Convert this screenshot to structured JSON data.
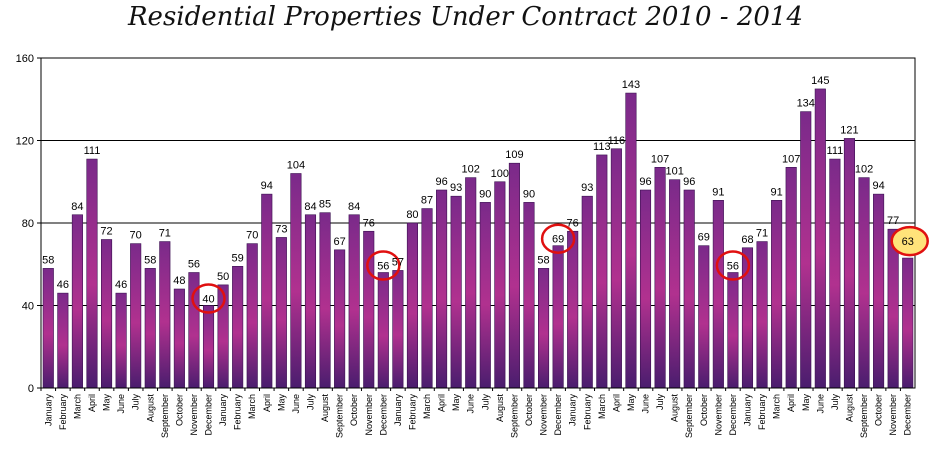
{
  "chart_data": {
    "type": "bar",
    "title": "Residential Properties Under Contract 2010 - 2014",
    "xlabel": "",
    "ylabel": "",
    "ylim": [
      0,
      160
    ],
    "yticks": [
      0,
      40,
      80,
      120,
      160
    ],
    "grid": true,
    "legend": "none",
    "colors": {
      "bar_top": "#7a2a8a",
      "bar_mid": "#b1318f",
      "bar_bottom": "#4a1d6e",
      "circle": "#e01010",
      "highlight_fill": "#ffe37a"
    },
    "categories": [
      "January",
      "February",
      "March",
      "April",
      "May",
      "June",
      "July",
      "August",
      "September",
      "October",
      "November",
      "December",
      "January",
      "February",
      "March",
      "April",
      "May",
      "June",
      "July",
      "August",
      "September",
      "October",
      "November",
      "December",
      "January",
      "February",
      "March",
      "April",
      "May",
      "June",
      "July",
      "August",
      "September",
      "October",
      "November",
      "December",
      "January",
      "February",
      "March",
      "April",
      "May",
      "June",
      "July",
      "August",
      "September",
      "October",
      "November",
      "December",
      "January",
      "February",
      "March",
      "April",
      "May",
      "June",
      "July",
      "August",
      "September",
      "October",
      "November",
      "December"
    ],
    "values": [
      58,
      46,
      84,
      111,
      72,
      46,
      70,
      58,
      71,
      48,
      56,
      40,
      50,
      59,
      70,
      94,
      73,
      104,
      84,
      85,
      67,
      84,
      76,
      56,
      57,
      80,
      87,
      96,
      93,
      102,
      90,
      100,
      109,
      90,
      58,
      69,
      76,
      93,
      113,
      116,
      143,
      96,
      107,
      101,
      96,
      69,
      91,
      56,
      68,
      71,
      91,
      107,
      134,
      145,
      111,
      121,
      102,
      94,
      77,
      63
    ],
    "circled_indices": [
      11,
      23,
      35,
      47
    ],
    "highlighted_indices": [
      59
    ]
  }
}
